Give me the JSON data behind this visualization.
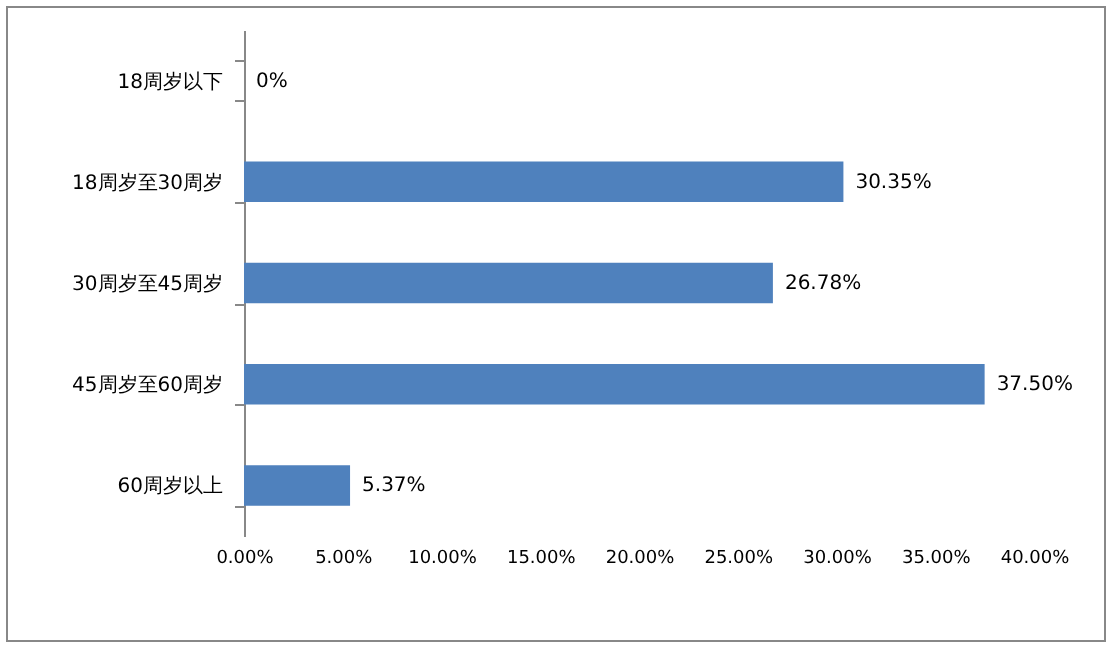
{
  "chart_data": {
    "type": "bar",
    "orientation": "horizontal",
    "categories": [
      "18周岁以下",
      "18周岁至30周岁",
      "30周岁至45周岁",
      "45周岁至60周岁",
      "60周岁以上"
    ],
    "values": [
      0,
      30.35,
      26.78,
      37.5,
      5.37
    ],
    "value_labels": [
      "0%",
      "30.35%",
      "26.78%",
      "37.50%",
      "5.37%"
    ],
    "color": "#4f81bd",
    "xlim": [
      0,
      40
    ],
    "xticks": [
      {
        "value": 0,
        "label": "0.00%"
      },
      {
        "value": 5,
        "label": "5.00%"
      },
      {
        "value": 10,
        "label": "10.00%"
      },
      {
        "value": 15,
        "label": "15.00%"
      },
      {
        "value": 20,
        "label": "20.00%"
      },
      {
        "value": 25,
        "label": "25.00%"
      },
      {
        "value": 30,
        "label": "30.00%"
      },
      {
        "value": 35,
        "label": "35.00%"
      },
      {
        "value": 40,
        "label": "40.00%"
      }
    ],
    "grid": false
  }
}
